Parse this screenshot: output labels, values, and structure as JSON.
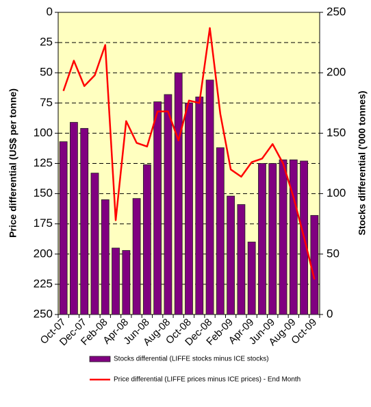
{
  "chart_data": {
    "type": "bar_line",
    "y_label": "Price differential (US$ per tonne)",
    "y2_label": "Stocks differential ('000 tonnes)",
    "categories": [
      "Oct-07",
      null,
      "Dec-07",
      null,
      "Feb-08",
      null,
      "Apr-08",
      null,
      "Jun-08",
      null,
      "Aug-08",
      null,
      "Oct-08",
      null,
      "Dec-08",
      null,
      "Feb-09",
      null,
      "Apr-09",
      null,
      "Jun-09",
      null,
      "Aug-09",
      null,
      "Oct-09"
    ],
    "series": [
      {
        "name": "Stocks differential (LIFFE stocks minus ICE stocks)",
        "type": "bar",
        "axis": "y2",
        "color": "#800080",
        "values": [
          143,
          159,
          154,
          117,
          95,
          55,
          53,
          96,
          124,
          176,
          182,
          200,
          175,
          180,
          194,
          138,
          98,
          91,
          60,
          125,
          125,
          128,
          128,
          127,
          82
        ]
      },
      {
        "name": "Price differential (LIFFE prices minus ICE prices) - End Month",
        "type": "line",
        "axis": "y",
        "color": "#ff0000",
        "values": [
          65,
          40,
          61,
          52,
          27,
          172,
          90,
          108,
          111,
          82,
          82,
          106,
          73,
          75,
          13,
          84,
          130,
          136,
          124,
          121,
          109,
          125,
          153,
          186,
          221
        ]
      }
    ],
    "ylim": [
      0,
      250
    ],
    "y_inverted": true,
    "yticks": [
      0,
      25,
      50,
      75,
      100,
      125,
      150,
      175,
      200,
      225,
      250
    ],
    "y2lim": [
      0,
      250
    ],
    "y2ticks": [
      0,
      50,
      100,
      150,
      200,
      250
    ],
    "grid": true,
    "background": "#ffffc0"
  }
}
